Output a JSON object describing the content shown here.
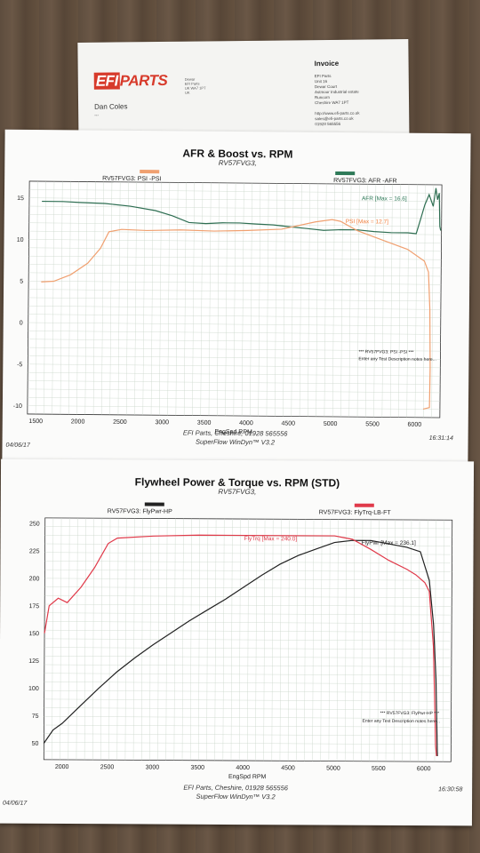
{
  "invoice": {
    "logo": "EFI PARTS",
    "logo_efi": "EFI",
    "logo_parts": "PARTS",
    "title": "Invoice",
    "customer": "Dan Coles",
    "customer_line2": "***",
    "address_lines": [
      "EFI Parts",
      "Unit 16",
      "Dewar Court",
      "Astmoor Industrial estate",
      "Runcorn",
      "Cheshire WA7 1PT",
      "",
      "http://www.efi-parts.co.uk",
      "sales@efi-parts.co.uk",
      "01928 565556",
      "",
      "Date: 06/04/17"
    ]
  },
  "chart_data": [
    {
      "type": "line",
      "title": "AFR & Boost vs. RPM",
      "subtitle": "RV57FVG3,",
      "xlabel": "EngSpd RPM",
      "ylabel": "",
      "xlim": [
        1400,
        6300
      ],
      "ylim": [
        -11,
        17
      ],
      "x_ticks": [
        1500,
        2000,
        2500,
        3000,
        3500,
        4000,
        4500,
        5000,
        5500,
        6000
      ],
      "y_ticks": [
        15,
        10,
        5,
        0,
        -5,
        -10
      ],
      "grid": true,
      "legend": [
        {
          "label": "RV57FVG3: PSI  -PSI",
          "color": "#f0a070"
        },
        {
          "label": "RV57FVG3: AFR  -AFR",
          "color": "#2e7a58"
        }
      ],
      "annotations": [
        {
          "text": "AFR  [Max = 16.6]",
          "color": "#2e7a58"
        },
        {
          "text": "PSI  [Max = 12.7]",
          "color": "#f08040"
        },
        {
          "text": "*** RV57FVG3: PSI  -PSI  ***",
          "color": "#222"
        },
        {
          "text": "Enter any Test Description notes here...",
          "color": "#222"
        }
      ],
      "series": [
        {
          "name": "AFR",
          "color": "#2e6e52",
          "x": [
            1550,
            1800,
            2000,
            2300,
            2600,
            2900,
            3100,
            3300,
            3500,
            3700,
            3900,
            4100,
            4300,
            4500,
            4700,
            4900,
            5100,
            5300,
            5500,
            5700,
            5900,
            6000,
            6050,
            6100,
            6150,
            6200,
            6230,
            6250,
            6270,
            6280,
            6290
          ],
          "y": [
            14.6,
            14.6,
            14.5,
            14.4,
            14.1,
            13.6,
            13.0,
            12.2,
            12.1,
            12.2,
            12.2,
            12.1,
            12.0,
            11.8,
            11.6,
            11.4,
            11.5,
            11.5,
            11.3,
            11.2,
            11.2,
            11.1,
            12.8,
            14.6,
            15.8,
            14.4,
            16.6,
            15.2,
            16.0,
            12.0,
            11.5
          ]
        },
        {
          "name": "PSI",
          "color": "#f0a070",
          "x": [
            1550,
            1700,
            1900,
            2100,
            2250,
            2350,
            2500,
            2800,
            3200,
            3600,
            4000,
            4400,
            4800,
            5000,
            5100,
            5300,
            5600,
            5900,
            6100,
            6150,
            6170,
            6180,
            6175,
            6100
          ],
          "y": [
            4.9,
            5.0,
            5.8,
            7.2,
            9.0,
            11.0,
            11.3,
            11.2,
            11.3,
            11.2,
            11.3,
            11.5,
            12.4,
            12.7,
            12.5,
            11.4,
            10.3,
            9.2,
            7.8,
            6.5,
            2.0,
            -5.0,
            -9.8,
            -10.0
          ]
        }
      ],
      "footer_line1": "EFI Parts, Cheshire, 01928 565556",
      "footer_line2": "SuperFlow WinDyn™ V3.2",
      "date": "04/06/17",
      "time": "16:31:14"
    },
    {
      "type": "line",
      "title": "Flywheel Power & Torque vs. RPM (STD)",
      "subtitle": "RV57FVG3,",
      "xlabel": "EngSpd RPM",
      "ylabel": "",
      "xlim": [
        1800,
        6300
      ],
      "ylim": [
        35,
        255
      ],
      "x_ticks": [
        2000,
        2500,
        3000,
        3500,
        4000,
        4500,
        5000,
        5500,
        6000
      ],
      "y_ticks": [
        250,
        225,
        200,
        175,
        150,
        125,
        100,
        75,
        50
      ],
      "grid": true,
      "legend": [
        {
          "label": "RV57FVG3: FlyPwr-HP",
          "color": "#222"
        },
        {
          "label": "RV57FVG3: FlyTrq-LB-FT",
          "color": "#e03a4a"
        }
      ],
      "annotations": [
        {
          "text": "FlyTrq  [Max = 240.0]",
          "color": "#e03a4a"
        },
        {
          "text": "FlyPwr  [Max = 236.1]",
          "color": "#222"
        },
        {
          "text": "*** RV57FVG3: FlyPwr-HP  ***",
          "color": "#222"
        },
        {
          "text": "Enter any Test Description notes here...",
          "color": "#222"
        }
      ],
      "series": [
        {
          "name": "FlyPwr-HP",
          "color": "#222",
          "x": [
            1800,
            1900,
            2000,
            2200,
            2400,
            2600,
            2800,
            3000,
            3200,
            3400,
            3600,
            3800,
            4000,
            4200,
            4400,
            4600,
            4800,
            5000,
            5200,
            5400,
            5600,
            5800,
            5950,
            6050,
            6100,
            6130,
            6150
          ],
          "y": [
            50,
            62,
            68,
            84,
            100,
            115,
            128,
            140,
            151,
            162,
            172,
            182,
            193,
            204,
            214,
            222,
            228,
            234,
            236,
            236,
            233,
            230,
            226,
            200,
            160,
            110,
            40
          ]
        },
        {
          "name": "FlyTrq-LB-FT",
          "color": "#e03a4a",
          "x": [
            1800,
            1850,
            1950,
            2050,
            2200,
            2350,
            2500,
            2600,
            3000,
            3500,
            4000,
            4500,
            5000,
            5200,
            5400,
            5600,
            5800,
            5900,
            6000,
            6050,
            6100,
            6120,
            6130,
            6140
          ],
          "y": [
            150,
            175,
            182,
            178,
            192,
            210,
            232,
            237,
            239,
            240,
            240,
            240,
            240,
            237,
            228,
            218,
            210,
            205,
            198,
            190,
            140,
            80,
            50,
            40
          ]
        }
      ],
      "footer_line1": "EFI Parts, Cheshire, 01928 565556",
      "footer_line2": "SuperFlow WinDyn™ V3.2",
      "date": "04/06/17",
      "time": "16:30:58"
    }
  ]
}
